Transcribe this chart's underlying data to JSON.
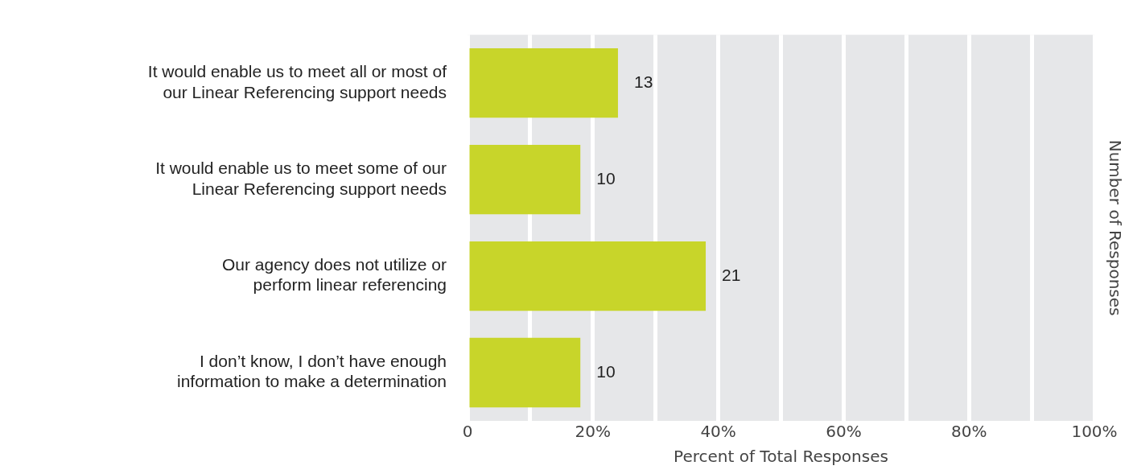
{
  "chart_data": {
    "type": "bar",
    "orientation": "horizontal",
    "categories": [
      "It would enable us to meet all or most of our Linear Referencing support needs",
      "It would enable us to meet some of our Linear Referencing support needs",
      "Our agency does not utilize or perform linear referencing",
      "I don’t know, I don’t have enough information to make a determination"
    ],
    "values": [
      24,
      18,
      38,
      18
    ],
    "color": "#c8d52a",
    "annotations": [
      {
        "text": "13",
        "x": 24,
        "y": "It would enable us to meet all or most of our Linear Referencing support needs"
      },
      {
        "text": "10",
        "x": 18,
        "y": "It would enable us to meet some of our Linear Referencing support needs"
      },
      {
        "text": "21",
        "x": 38,
        "y": "Our agency does not utilize or perform linear referencing"
      },
      {
        "text": "10",
        "x": 18,
        "y": "I don’t know, I don’t have enough information to make a determination"
      }
    ],
    "xlabel": "Percent of Total Responses",
    "y2label": "Number of Responses",
    "xlim": [
      0,
      100
    ],
    "xticks": [
      {
        "value": 0,
        "label": "0"
      },
      {
        "value": 10,
        "label": null
      },
      {
        "value": 20,
        "label": "20%"
      },
      {
        "value": 30,
        "label": null
      },
      {
        "value": 40,
        "label": "40%"
      },
      {
        "value": 50,
        "label": null
      },
      {
        "value": 60,
        "label": "60%"
      },
      {
        "value": 70,
        "label": null
      },
      {
        "value": 80,
        "label": "80%"
      },
      {
        "value": 90,
        "label": null
      },
      {
        "value": 100,
        "label": "100%"
      }
    ],
    "grid": "x"
  }
}
